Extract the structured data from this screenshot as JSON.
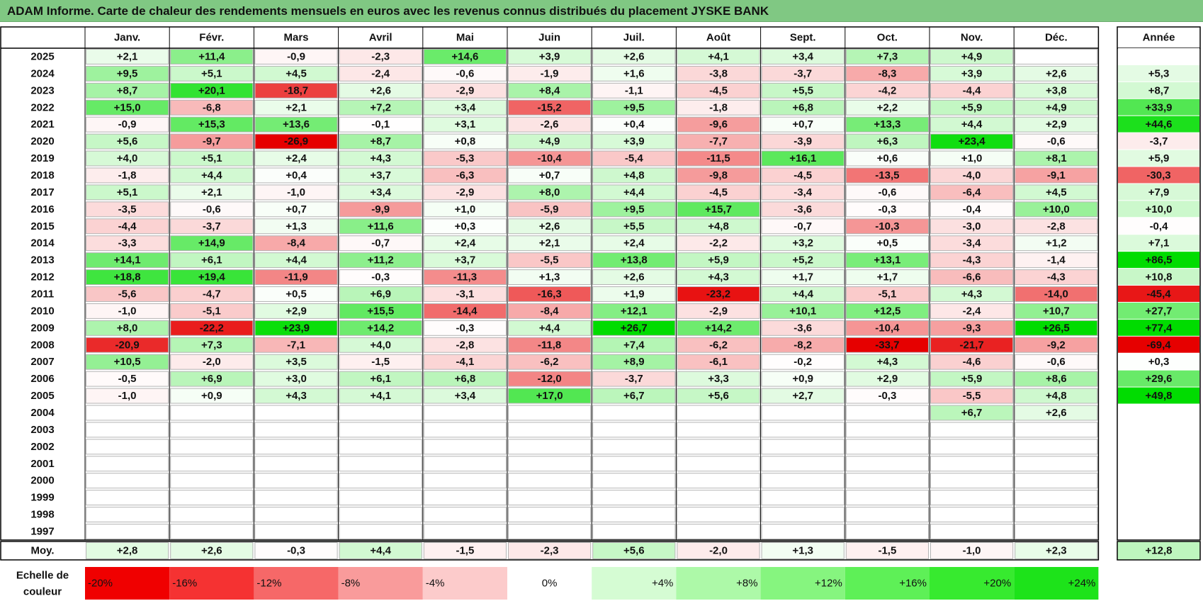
{
  "title": "ADAM Informe. Carte de chaleur des rendements mensuels en euros avec les revenus connus distribués du placement JYSKE BANK",
  "chart_data": {
    "type": "heatmap",
    "months": [
      "Janv.",
      "Févr.",
      "Mars",
      "Avril",
      "Mai",
      "Juin",
      "Juil.",
      "Août",
      "Sept.",
      "Oct.",
      "Nov.",
      "Déc."
    ],
    "annual_header": "Année",
    "rows": [
      {
        "year": "2025",
        "values": [
          "+2,1",
          "+11,4",
          "-0,9",
          "-2,3",
          "+14,6",
          "+3,9",
          "+2,6",
          "+4,1",
          "+3,4",
          "+7,3",
          "+4,9",
          ""
        ],
        "annual": ""
      },
      {
        "year": "2024",
        "values": [
          "+9,5",
          "+5,1",
          "+4,5",
          "-2,4",
          "-0,6",
          "-1,9",
          "+1,6",
          "-3,8",
          "-3,7",
          "-8,3",
          "+3,9",
          "+2,6"
        ],
        "annual": "+5,3"
      },
      {
        "year": "2023",
        "values": [
          "+8,7",
          "+20,1",
          "-18,7",
          "+2,6",
          "-2,9",
          "+8,4",
          "-1,1",
          "-4,5",
          "+5,5",
          "-4,2",
          "-4,4",
          "+3,8"
        ],
        "annual": "+8,7"
      },
      {
        "year": "2022",
        "values": [
          "+15,0",
          "-6,8",
          "+2,1",
          "+7,2",
          "+3,4",
          "-15,2",
          "+9,5",
          "-1,8",
          "+6,8",
          "+2,2",
          "+5,9",
          "+4,9"
        ],
        "annual": "+33,9"
      },
      {
        "year": "2021",
        "values": [
          "-0,9",
          "+15,3",
          "+13,6",
          "-0,1",
          "+3,1",
          "-2,6",
          "+0,4",
          "-9,6",
          "+0,7",
          "+13,3",
          "+4,4",
          "+2,9"
        ],
        "annual": "+44,6"
      },
      {
        "year": "2020",
        "values": [
          "+5,6",
          "-9,7",
          "-26,9",
          "+8,7",
          "+0,8",
          "+4,9",
          "+3,9",
          "-7,7",
          "-3,9",
          "+6,3",
          "+23,4",
          "-0,6"
        ],
        "annual": "-3,7"
      },
      {
        "year": "2019",
        "values": [
          "+4,0",
          "+5,1",
          "+2,4",
          "+4,3",
          "-5,3",
          "-10,4",
          "-5,4",
          "-11,5",
          "+16,1",
          "+0,6",
          "+1,0",
          "+8,1"
        ],
        "annual": "+5,9"
      },
      {
        "year": "2018",
        "values": [
          "-1,8",
          "+4,4",
          "+0,4",
          "+3,7",
          "-6,3",
          "+0,7",
          "+4,8",
          "-9,8",
          "-4,5",
          "-13,5",
          "-4,0",
          "-9,1"
        ],
        "annual": "-30,3"
      },
      {
        "year": "2017",
        "values": [
          "+5,1",
          "+2,1",
          "-1,0",
          "+3,4",
          "-2,9",
          "+8,0",
          "+4,4",
          "-4,5",
          "-3,4",
          "-0,6",
          "-6,4",
          "+4,5"
        ],
        "annual": "+7,9"
      },
      {
        "year": "2016",
        "values": [
          "-3,5",
          "-0,6",
          "+0,7",
          "-9,9",
          "+1,0",
          "-5,9",
          "+9,5",
          "+15,7",
          "-3,6",
          "-0,3",
          "-0,4",
          "+10,0"
        ],
        "annual": "+10,0"
      },
      {
        "year": "2015",
        "values": [
          "-4,4",
          "-3,7",
          "+1,3",
          "+11,6",
          "+0,3",
          "+2,6",
          "+5,5",
          "+4,8",
          "-0,7",
          "-10,3",
          "-3,0",
          "-2,8"
        ],
        "annual": "-0,4"
      },
      {
        "year": "2014",
        "values": [
          "-3,3",
          "+14,9",
          "-8,4",
          "-0,7",
          "+2,4",
          "+2,1",
          "+2,4",
          "-2,2",
          "+3,2",
          "+0,5",
          "-3,4",
          "+1,2"
        ],
        "annual": "+7,1"
      },
      {
        "year": "2013",
        "values": [
          "+14,1",
          "+6,1",
          "+4,4",
          "+11,2",
          "+3,7",
          "-5,5",
          "+13,8",
          "+5,9",
          "+5,2",
          "+13,1",
          "-4,3",
          "-1,4"
        ],
        "annual": "+86,5"
      },
      {
        "year": "2012",
        "values": [
          "+18,8",
          "+19,4",
          "-11,9",
          "-0,3",
          "-11,3",
          "+1,3",
          "+2,6",
          "+4,3",
          "+1,7",
          "+1,7",
          "-6,6",
          "-4,3"
        ],
        "annual": "+10,8"
      },
      {
        "year": "2011",
        "values": [
          "-5,6",
          "-4,7",
          "+0,5",
          "+6,9",
          "-3,1",
          "-16,3",
          "+1,9",
          "-23,2",
          "+4,4",
          "-5,1",
          "+4,3",
          "-14,0"
        ],
        "annual": "-45,4"
      },
      {
        "year": "2010",
        "values": [
          "-1,0",
          "-5,1",
          "+2,9",
          "+15,5",
          "-14,4",
          "-8,4",
          "+12,1",
          "-2,9",
          "+10,1",
          "+12,5",
          "-2,4",
          "+10,7"
        ],
        "annual": "+27,7"
      },
      {
        "year": "2009",
        "values": [
          "+8,0",
          "-22,2",
          "+23,9",
          "+14,2",
          "-0,3",
          "+4,4",
          "+26,7",
          "+14,2",
          "-3,6",
          "-10,4",
          "-9,3",
          "+26,5"
        ],
        "annual": "+77,4"
      },
      {
        "year": "2008",
        "values": [
          "-20,9",
          "+7,3",
          "-7,1",
          "+4,0",
          "-2,8",
          "-11,8",
          "+7,4",
          "-6,2",
          "-8,2",
          "-33,7",
          "-21,7",
          "-9,2"
        ],
        "annual": "-69,4"
      },
      {
        "year": "2007",
        "values": [
          "+10,5",
          "-2,0",
          "+3,5",
          "-1,5",
          "-4,1",
          "-6,2",
          "+8,9",
          "-6,1",
          "-0,2",
          "+4,3",
          "-4,6",
          "-0,6"
        ],
        "annual": "+0,3"
      },
      {
        "year": "2006",
        "values": [
          "-0,5",
          "+6,9",
          "+3,0",
          "+6,1",
          "+6,8",
          "-12,0",
          "-3,7",
          "+3,3",
          "+0,9",
          "+2,9",
          "+5,9",
          "+8,6"
        ],
        "annual": "+29,6"
      },
      {
        "year": "2005",
        "values": [
          "-1,0",
          "+0,9",
          "+4,3",
          "+4,1",
          "+3,4",
          "+17,0",
          "+6,7",
          "+5,6",
          "+2,7",
          "-0,3",
          "-5,5",
          "+4,8"
        ],
        "annual": "+49,8"
      },
      {
        "year": "2004",
        "values": [
          "",
          "",
          "",
          "",
          "",
          "",
          "",
          "",
          "",
          "",
          "+6,7",
          "+2,6"
        ],
        "annual": ""
      },
      {
        "year": "2003",
        "values": [
          "",
          "",
          "",
          "",
          "",
          "",
          "",
          "",
          "",
          "",
          "",
          ""
        ],
        "annual": ""
      },
      {
        "year": "2002",
        "values": [
          "",
          "",
          "",
          "",
          "",
          "",
          "",
          "",
          "",
          "",
          "",
          ""
        ],
        "annual": ""
      },
      {
        "year": "2001",
        "values": [
          "",
          "",
          "",
          "",
          "",
          "",
          "",
          "",
          "",
          "",
          "",
          ""
        ],
        "annual": ""
      },
      {
        "year": "2000",
        "values": [
          "",
          "",
          "",
          "",
          "",
          "",
          "",
          "",
          "",
          "",
          "",
          ""
        ],
        "annual": ""
      },
      {
        "year": "1999",
        "values": [
          "",
          "",
          "",
          "",
          "",
          "",
          "",
          "",
          "",
          "",
          "",
          ""
        ],
        "annual": ""
      },
      {
        "year": "1998",
        "values": [
          "",
          "",
          "",
          "",
          "",
          "",
          "",
          "",
          "",
          "",
          "",
          ""
        ],
        "annual": ""
      },
      {
        "year": "1997",
        "values": [
          "",
          "",
          "",
          "",
          "",
          "",
          "",
          "",
          "",
          "",
          "",
          ""
        ],
        "annual": ""
      }
    ],
    "average": {
      "label": "Moy.",
      "values": [
        "+2,8",
        "+2,6",
        "-0,3",
        "+4,4",
        "-1,5",
        "-2,3",
        "+5,6",
        "-2,0",
        "+1,3",
        "-1,5",
        "-1,0",
        "+2,3"
      ],
      "annual": "+12,8"
    },
    "color_scale": {
      "label_line1": "Echelle de",
      "label_line2": "couleur",
      "stops": [
        "-20%",
        "-16%",
        "-12%",
        "-8%",
        "-4%",
        "0%",
        "+4%",
        "+8%",
        "+12%",
        "+16%",
        "+20%",
        "+24%"
      ],
      "colors": [
        "#f00000",
        "#f53232",
        "#f66868",
        "#f99b9b",
        "#fccbcb",
        "#ffffff",
        "#d5fcd3",
        "#adf9a8",
        "#86f57f",
        "#5ef057",
        "#37ea2f",
        "#1de31a"
      ]
    },
    "colors": {
      "title_bg": "#80c883",
      "negative_max": "#e60000",
      "positive_max": "#00dc00",
      "grid": "#b4b4b4"
    }
  }
}
